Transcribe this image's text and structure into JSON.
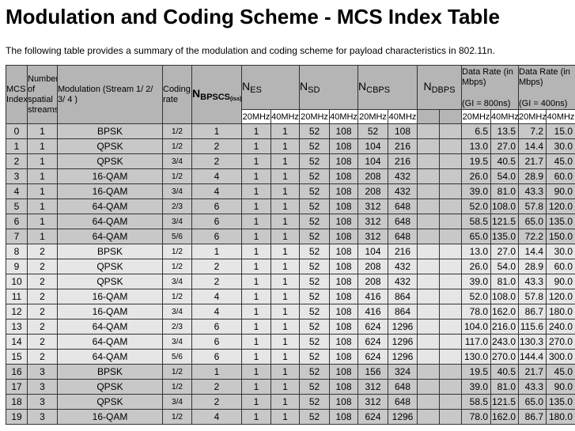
{
  "title": "Modulation and Coding Scheme - MCS Index Table",
  "intro": "The following table provides a summary of the modulation and coding scheme for payload characteristics in 802.11n.",
  "table": {
    "headers": {
      "mcs": "MCS Index",
      "streams": "Number of spatial streams",
      "modulation": "Modulation (Stream 1/ 2/ 3/ 4 )",
      "coding": "Coding rate",
      "nbpscs": {
        "main": "N",
        "sub": "BPSCS",
        "sub2": "(iss)"
      },
      "nes": {
        "main": "N",
        "sub": "ES"
      },
      "nsd": {
        "main": "N",
        "sub": "SD"
      },
      "ncbps": {
        "main": "N",
        "sub": "CBPS"
      },
      "ndbps": {
        "main": "N",
        "sub": "DBPS"
      },
      "rate800": {
        "label": "Data Rate (in Mbps)",
        "gi": "(GI = 800ns)"
      },
      "rate400": {
        "label": "Data Rate (in Mbps)",
        "gi": "(GI = 400ns)"
      }
    },
    "sub_headers": [
      "20MHz",
      "40MHz",
      "20MHz",
      "40MHz",
      "20MHz",
      "40MHz",
      "20MHz",
      "40MHz",
      "20MHz",
      "40MHz"
    ],
    "rows": [
      [
        "0",
        "1",
        "BPSK",
        "1/2",
        "1",
        "1",
        "1",
        "52",
        "108",
        "52",
        "108",
        "6.5",
        "13.5",
        "7.2",
        "15.0"
      ],
      [
        "1",
        "1",
        "QPSK",
        "1/2",
        "2",
        "1",
        "1",
        "52",
        "108",
        "104",
        "216",
        "13.0",
        "27.0",
        "14.4",
        "30.0"
      ],
      [
        "2",
        "1",
        "QPSK",
        "3/4",
        "2",
        "1",
        "1",
        "52",
        "108",
        "104",
        "216",
        "19.5",
        "40.5",
        "21.7",
        "45.0"
      ],
      [
        "3",
        "1",
        "16-QAM",
        "1/2",
        "4",
        "1",
        "1",
        "52",
        "108",
        "208",
        "432",
        "26.0",
        "54.0",
        "28.9",
        "60.0"
      ],
      [
        "4",
        "1",
        "16-QAM",
        "3/4",
        "4",
        "1",
        "1",
        "52",
        "108",
        "208",
        "432",
        "39.0",
        "81.0",
        "43.3",
        "90.0"
      ],
      [
        "5",
        "1",
        "64-QAM",
        "2/3",
        "6",
        "1",
        "1",
        "52",
        "108",
        "312",
        "648",
        "52.0",
        "108.0",
        "57.8",
        "120.0"
      ],
      [
        "6",
        "1",
        "64-QAM",
        "3/4",
        "6",
        "1",
        "1",
        "52",
        "108",
        "312",
        "648",
        "58.5",
        "121.5",
        "65.0",
        "135.0"
      ],
      [
        "7",
        "1",
        "64-QAM",
        "5/6",
        "6",
        "1",
        "1",
        "52",
        "108",
        "312",
        "648",
        "65.0",
        "135.0",
        "72.2",
        "150.0"
      ],
      [
        "8",
        "2",
        "BPSK",
        "1/2",
        "1",
        "1",
        "1",
        "52",
        "108",
        "104",
        "216",
        "13.0",
        "27.0",
        "14.4",
        "30.0"
      ],
      [
        "9",
        "2",
        "QPSK",
        "1/2",
        "2",
        "1",
        "1",
        "52",
        "108",
        "208",
        "432",
        "26.0",
        "54.0",
        "28.9",
        "60.0"
      ],
      [
        "10",
        "2",
        "QPSK",
        "3/4",
        "2",
        "1",
        "1",
        "52",
        "108",
        "208",
        "432",
        "39.0",
        "81.0",
        "43.3",
        "90.0"
      ],
      [
        "11",
        "2",
        "16-QAM",
        "1/2",
        "4",
        "1",
        "1",
        "52",
        "108",
        "416",
        "864",
        "52.0",
        "108.0",
        "57.8",
        "120.0"
      ],
      [
        "12",
        "2",
        "16-QAM",
        "3/4",
        "4",
        "1",
        "1",
        "52",
        "108",
        "416",
        "864",
        "78.0",
        "162.0",
        "86.7",
        "180.0"
      ],
      [
        "13",
        "2",
        "64-QAM",
        "2/3",
        "6",
        "1",
        "1",
        "52",
        "108",
        "624",
        "1296",
        "104.0",
        "216.0",
        "115.6",
        "240.0"
      ],
      [
        "14",
        "2",
        "64-QAM",
        "3/4",
        "6",
        "1",
        "1",
        "52",
        "108",
        "624",
        "1296",
        "117.0",
        "243.0",
        "130.3",
        "270.0"
      ],
      [
        "15",
        "2",
        "64-QAM",
        "5/6",
        "6",
        "1",
        "1",
        "52",
        "108",
        "624",
        "1296",
        "130.0",
        "270.0",
        "144.4",
        "300.0"
      ],
      [
        "16",
        "3",
        "BPSK",
        "1/2",
        "1",
        "1",
        "1",
        "52",
        "108",
        "156",
        "324",
        "19.5",
        "40.5",
        "21.7",
        "45.0"
      ],
      [
        "17",
        "3",
        "QPSK",
        "1/2",
        "2",
        "1",
        "1",
        "52",
        "108",
        "312",
        "648",
        "39.0",
        "81.0",
        "43.3",
        "90.0"
      ],
      [
        "18",
        "3",
        "QPSK",
        "3/4",
        "2",
        "1",
        "1",
        "52",
        "108",
        "312",
        "648",
        "58.5",
        "121.5",
        "65.0",
        "135.0"
      ],
      [
        "19",
        "3",
        "16-QAM",
        "1/2",
        "4",
        "1",
        "1",
        "52",
        "108",
        "624",
        "1296",
        "78.0",
        "162.0",
        "86.7",
        "180.0"
      ]
    ]
  }
}
